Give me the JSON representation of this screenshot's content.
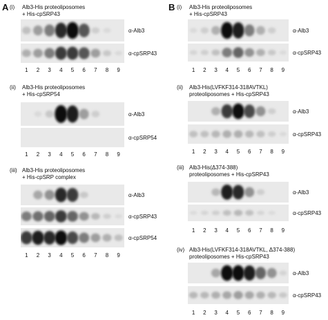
{
  "panelA": {
    "letter": "A",
    "sections": [
      {
        "roman": "(i)",
        "lines": [
          "Alb3-His proteoliposomes",
          "+ His-cpSRP43"
        ],
        "blots": [
          {
            "antibody": "α-Alb3",
            "profile": [
              0.25,
              0.45,
              0.6,
              0.9,
              1.0,
              0.75,
              0.15,
              0.05,
              0.0
            ]
          },
          {
            "antibody": "α-cpSRP43",
            "profile": [
              0.35,
              0.45,
              0.6,
              0.85,
              0.85,
              0.75,
              0.45,
              0.2,
              0.05
            ]
          }
        ]
      },
      {
        "roman": "(ii)",
        "lines": [
          "Alb3-His proteoliposomes",
          "+ His-cpSRP54"
        ],
        "blots": [
          {
            "antibody": "α-Alb3",
            "profile": [
              0.0,
              0.05,
              0.2,
              1.0,
              0.95,
              0.45,
              0.15,
              0.0,
              0.0
            ]
          },
          {
            "antibody": "α-cpSRP54",
            "profile": [
              0.0,
              0.0,
              0.0,
              0.0,
              0.0,
              0.0,
              0.0,
              0.0,
              0.0
            ]
          }
        ]
      },
      {
        "roman": "(iii)",
        "lines": [
          "Alb3-His proteoliposomes",
          "+ His-cpSRP complex"
        ],
        "blots": [
          {
            "antibody": "α-Alb3",
            "profile": [
              0.0,
              0.4,
              0.5,
              0.9,
              0.85,
              0.2,
              0.0,
              0.0,
              0.0
            ]
          },
          {
            "antibody": "α-cpSRP43",
            "profile": [
              0.6,
              0.65,
              0.7,
              0.85,
              0.7,
              0.5,
              0.3,
              0.15,
              0.05
            ]
          },
          {
            "antibody": "α-cpSRP54",
            "profile": [
              0.85,
              0.95,
              0.9,
              1.0,
              0.8,
              0.6,
              0.45,
              0.35,
              0.25
            ]
          }
        ]
      }
    ]
  },
  "panelB": {
    "letter": "B",
    "sections": [
      {
        "roman": "(i)",
        "lines": [
          "Alb3-His proteoliposomes",
          "+ His-cpSRP43"
        ],
        "blots": [
          {
            "antibody": "α-Alb3",
            "profile": [
              0.05,
              0.15,
              0.35,
              1.0,
              0.95,
              0.6,
              0.35,
              0.15,
              0.0
            ]
          },
          {
            "antibody": "α-cpSRP43",
            "profile": [
              0.1,
              0.15,
              0.25,
              0.6,
              0.7,
              0.5,
              0.35,
              0.2,
              0.05
            ]
          }
        ]
      },
      {
        "roman": "(ii)",
        "lines": [
          "Alb3-His(LVFKF314-318AVTKL)",
          "proteoliposomes + His-cpSRP43"
        ],
        "blots": [
          {
            "antibody": "α-Alb3",
            "profile": [
              0.0,
              0.0,
              0.35,
              0.85,
              1.0,
              0.8,
              0.5,
              0.15,
              0.0
            ]
          },
          {
            "antibody": "α-cpSRP43",
            "profile": [
              0.25,
              0.25,
              0.3,
              0.35,
              0.35,
              0.3,
              0.25,
              0.15,
              0.05
            ]
          }
        ]
      },
      {
        "roman": "(iii)",
        "lines": [
          "Alb3-His(Δ374-388)",
          "proteoliposomes + His-cpSRP43"
        ],
        "blots": [
          {
            "antibody": "α-Alb3",
            "profile": [
              0.0,
              0.0,
              0.3,
              0.95,
              0.9,
              0.5,
              0.15,
              0.0,
              0.0
            ]
          },
          {
            "antibody": "α-cpSRP43",
            "profile": [
              0.05,
              0.1,
              0.15,
              0.25,
              0.3,
              0.25,
              0.1,
              0.05,
              0.0
            ]
          }
        ]
      },
      {
        "roman": "(iv)",
        "lines": [
          "Alb3-His(LVFKF314-318AVTKL, Δ374-388)",
          "proteoliposomes + His-cpSRP43"
        ],
        "blots": [
          {
            "antibody": "α-Alb3",
            "profile": [
              0.0,
              0.0,
              0.4,
              1.0,
              1.0,
              0.95,
              0.7,
              0.5,
              0.1
            ]
          },
          {
            "antibody": "α-cpSRP43",
            "profile": [
              0.3,
              0.3,
              0.35,
              0.4,
              0.45,
              0.4,
              0.35,
              0.3,
              0.2
            ]
          }
        ]
      }
    ]
  },
  "lane_labels": [
    "1",
    "2",
    "3",
    "4",
    "5",
    "6",
    "7",
    "8",
    "9"
  ]
}
